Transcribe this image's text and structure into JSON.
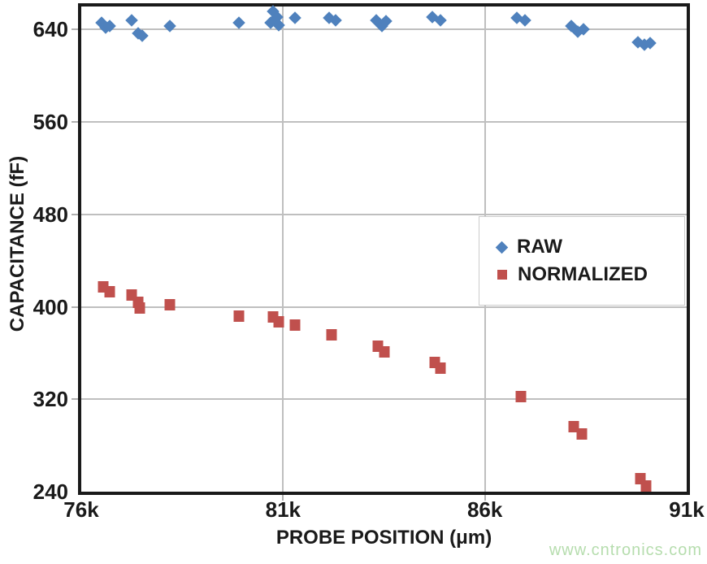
{
  "watermark": {
    "text": "www.cntronics.com",
    "color": "#b6ddae"
  },
  "colors": {
    "raw_series": "#4f81bd",
    "normalized_series": "#c0504d",
    "gridline": "#bfbfbf",
    "axis_frame": "#1a1a1a",
    "text": "#1a1a1a"
  },
  "chart_data": {
    "type": "scatter",
    "title": "",
    "xlabel": "PROBE POSITION (μm)",
    "ylabel": "CAPACITANCE (fF)",
    "xlim": [
      76000,
      91000
    ],
    "ylim": [
      240,
      660
    ],
    "grid": true,
    "legend_position": "inside-right",
    "x_ticks": [
      {
        "value": 76000,
        "label": "76k",
        "grid": false
      },
      {
        "value": 81000,
        "label": "81k",
        "grid": true
      },
      {
        "value": 86000,
        "label": "86k",
        "grid": true
      },
      {
        "value": 91000,
        "label": "91k",
        "grid": false
      }
    ],
    "y_ticks": [
      {
        "value": 240,
        "label": "240",
        "grid": false
      },
      {
        "value": 320,
        "label": "320",
        "grid": true
      },
      {
        "value": 400,
        "label": "400",
        "grid": true
      },
      {
        "value": 480,
        "label": "480",
        "grid": true
      },
      {
        "value": 560,
        "label": "560",
        "grid": true
      },
      {
        "value": 640,
        "label": "640",
        "grid": true
      }
    ],
    "series": [
      {
        "name": "RAW",
        "marker": "diamond",
        "color": "#4f81bd",
        "points": [
          [
            76500,
            646
          ],
          [
            76600,
            642
          ],
          [
            76700,
            643
          ],
          [
            77250,
            648
          ],
          [
            77400,
            637
          ],
          [
            77500,
            635
          ],
          [
            78200,
            643
          ],
          [
            79900,
            646
          ],
          [
            80700,
            646
          ],
          [
            80750,
            656
          ],
          [
            80850,
            651
          ],
          [
            80900,
            644
          ],
          [
            81300,
            650
          ],
          [
            82150,
            650
          ],
          [
            82300,
            648
          ],
          [
            83300,
            648
          ],
          [
            83450,
            643
          ],
          [
            83550,
            647
          ],
          [
            84700,
            651
          ],
          [
            84900,
            648
          ],
          [
            86800,
            650
          ],
          [
            87000,
            648
          ],
          [
            88150,
            643
          ],
          [
            88300,
            638
          ],
          [
            88450,
            640
          ],
          [
            89800,
            629
          ],
          [
            89950,
            627
          ],
          [
            90100,
            628
          ]
        ]
      },
      {
        "name": "NORMALIZED",
        "marker": "square",
        "color": "#c0504d",
        "points": [
          [
            76550,
            417
          ],
          [
            76700,
            413
          ],
          [
            77250,
            410
          ],
          [
            77400,
            404
          ],
          [
            77450,
            399
          ],
          [
            78200,
            402
          ],
          [
            79900,
            392
          ],
          [
            80750,
            391
          ],
          [
            80900,
            387
          ],
          [
            81300,
            384
          ],
          [
            82200,
            376
          ],
          [
            83350,
            366
          ],
          [
            83500,
            361
          ],
          [
            84750,
            352
          ],
          [
            84900,
            347
          ],
          [
            86900,
            322
          ],
          [
            88200,
            296
          ],
          [
            88400,
            290
          ],
          [
            89850,
            251
          ],
          [
            90000,
            245
          ]
        ]
      }
    ]
  }
}
